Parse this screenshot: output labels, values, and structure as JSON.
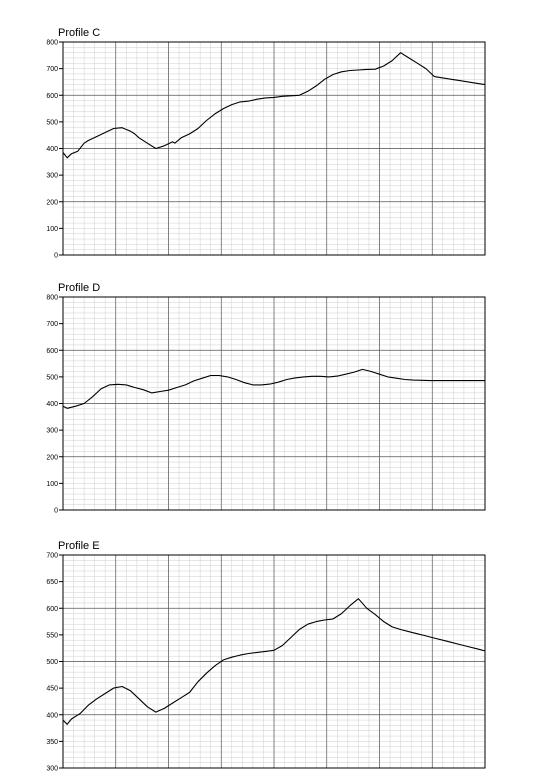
{
  "colors": {
    "background": "#ffffff",
    "line": "#000000",
    "minor_grid": "#cfcfcf",
    "major_grid": "#555555",
    "axis": "#000000"
  },
  "chart_data": [
    {
      "type": "line",
      "title": "Profile C",
      "ylim": [
        0,
        800
      ],
      "yticks": [
        "0",
        "100",
        "200",
        "300",
        "400",
        "500",
        "600",
        "700",
        "800"
      ],
      "xlim": [
        0,
        100
      ],
      "grid": true,
      "series": [
        {
          "x": [
            0,
            1,
            2,
            3.5,
            5,
            6,
            8,
            10,
            12,
            14,
            16,
            17,
            18,
            20,
            22,
            24,
            26,
            26.5,
            28,
            30,
            32,
            34,
            36,
            38,
            40,
            42,
            44,
            46,
            48,
            50,
            52,
            54,
            56,
            58,
            60,
            62,
            64,
            66,
            68,
            70,
            72,
            74,
            76,
            78,
            80,
            82,
            84,
            86,
            88,
            90,
            92,
            94,
            96,
            98,
            100
          ],
          "y": [
            385,
            365,
            380,
            390,
            420,
            430,
            445,
            460,
            475,
            478,
            465,
            455,
            440,
            420,
            400,
            410,
            425,
            420,
            440,
            455,
            475,
            505,
            530,
            550,
            565,
            575,
            578,
            585,
            590,
            592,
            596,
            598,
            600,
            615,
            635,
            660,
            678,
            688,
            693,
            695,
            697,
            698,
            710,
            730,
            760,
            740,
            720,
            700,
            670,
            665,
            660,
            655,
            650,
            645,
            640
          ]
        }
      ]
    },
    {
      "type": "line",
      "title": "Profile D",
      "ylim": [
        0,
        800
      ],
      "yticks": [
        "0",
        "100",
        "200",
        "300",
        "400",
        "500",
        "600",
        "700",
        "800"
      ],
      "xlim": [
        0,
        100
      ],
      "grid": true,
      "series": [
        {
          "x": [
            0,
            1,
            3,
            5,
            7,
            9,
            11,
            13,
            15,
            17,
            19,
            21,
            23,
            25,
            27,
            29,
            31,
            33,
            35,
            37,
            39,
            41,
            43,
            45,
            47,
            49,
            51,
            53,
            55,
            57,
            59,
            61,
            63,
            65,
            67,
            69,
            71,
            73,
            75,
            77,
            79,
            81,
            83,
            85,
            87,
            89,
            91,
            93,
            95,
            97,
            99,
            100
          ],
          "y": [
            390,
            382,
            390,
            400,
            425,
            455,
            470,
            472,
            470,
            460,
            452,
            440,
            445,
            450,
            460,
            470,
            485,
            495,
            505,
            505,
            500,
            490,
            478,
            470,
            470,
            473,
            480,
            490,
            496,
            500,
            502,
            502,
            500,
            503,
            510,
            518,
            528,
            520,
            510,
            500,
            495,
            490,
            488,
            487,
            486,
            486,
            486,
            486,
            486,
            486,
            486,
            486
          ]
        }
      ]
    },
    {
      "type": "line",
      "title": "Profile E",
      "ylim": [
        300,
        700
      ],
      "yticks": [
        "300",
        "350",
        "400",
        "450",
        "500",
        "550",
        "600",
        "650",
        "700"
      ],
      "xlim": [
        0,
        100
      ],
      "grid": true,
      "series": [
        {
          "x": [
            0,
            1,
            2,
            4,
            6,
            8,
            10,
            12,
            14,
            16,
            18,
            20,
            22,
            24,
            26,
            28,
            30,
            32,
            34,
            36,
            38,
            40,
            42,
            44,
            46,
            48,
            50,
            52,
            54,
            56,
            58,
            60,
            62,
            64,
            66,
            68,
            70,
            72,
            74,
            76,
            78,
            80,
            82,
            84,
            86,
            88,
            90,
            92,
            94,
            96,
            98,
            100
          ],
          "y": [
            390,
            382,
            392,
            402,
            418,
            430,
            440,
            450,
            453,
            445,
            430,
            415,
            405,
            412,
            422,
            432,
            442,
            462,
            478,
            492,
            503,
            508,
            512,
            515,
            517,
            519,
            521,
            530,
            545,
            560,
            570,
            575,
            578,
            580,
            590,
            605,
            618,
            600,
            588,
            575,
            565,
            560,
            556,
            552,
            548,
            544,
            540,
            536,
            532,
            528,
            524,
            520
          ]
        }
      ]
    }
  ]
}
